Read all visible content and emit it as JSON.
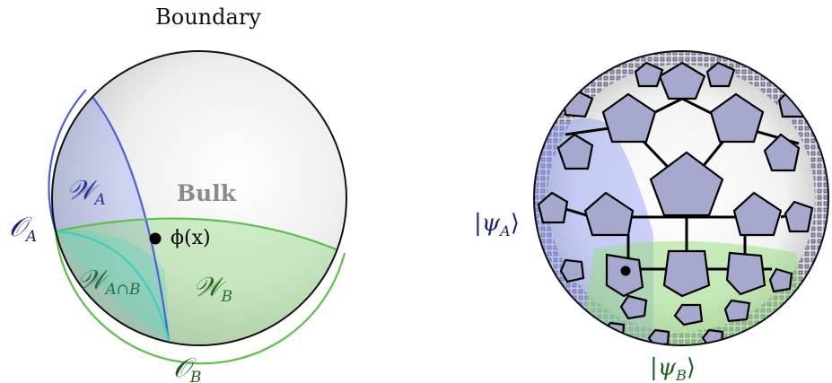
{
  "left_figure": {
    "boundary_label": "Boundary",
    "bulk_label": "Bulk",
    "field_label": "ϕ(x)",
    "operator_a": {
      "symbol": "𝒪",
      "subscript": "A"
    },
    "operator_b": {
      "symbol": "𝒪",
      "subscript": "B"
    },
    "wedge_a": {
      "symbol": "𝒲",
      "subscript": "A"
    },
    "wedge_b": {
      "symbol": "𝒲",
      "subscript": "B"
    },
    "wedge_ab": {
      "symbol": "𝒲",
      "subscript": "A∩B"
    }
  },
  "right_figure": {
    "state_a": {
      "open": "|ψ",
      "subscript": "A",
      "close": "⟩"
    },
    "state_b": {
      "open": "|ψ",
      "subscript": "B",
      "close": "⟩"
    }
  },
  "colors": {
    "region_a": "#4a5fe0",
    "region_b": "#5bbf4a",
    "region_ab": "#3fcfb8",
    "tile_fill": "#a7a8cd",
    "label_a": "#1a237e",
    "label_b": "#1b5e20"
  }
}
